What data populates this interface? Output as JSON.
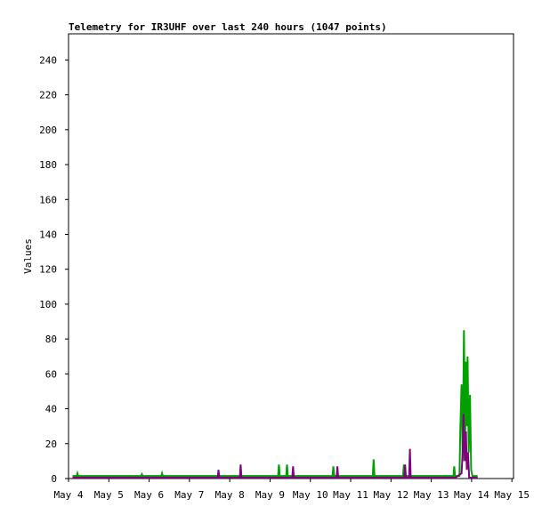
{
  "chart_data": {
    "type": "line",
    "title": "Telemetry for IR3UHF over last 240 hours (1047 points)",
    "y_label": "Values",
    "xlim": [
      0,
      11.04
    ],
    "ylim": [
      0,
      255
    ],
    "xticks": [
      {
        "value": 0,
        "label": "May 4"
      },
      {
        "value": 1,
        "label": "May 5"
      },
      {
        "value": 2,
        "label": "May 6"
      },
      {
        "value": 3,
        "label": "May 7"
      },
      {
        "value": 4,
        "label": "May 8"
      },
      {
        "value": 5,
        "label": "May 9"
      },
      {
        "value": 6,
        "label": "May 10"
      },
      {
        "value": 7,
        "label": "May 11"
      },
      {
        "value": 8,
        "label": "May 12"
      },
      {
        "value": 9,
        "label": "May 13"
      },
      {
        "value": 10,
        "label": "May 14"
      },
      {
        "value": 11,
        "label": "May 15"
      }
    ],
    "yticks": [
      0,
      20,
      40,
      60,
      80,
      100,
      120,
      140,
      160,
      180,
      200,
      220,
      240
    ],
    "series": [
      {
        "color": "#00a000",
        "x": [
          0.1,
          0.2,
          0.22,
          0.24,
          1.8,
          1.82,
          1.84,
          2.3,
          2.32,
          2.34,
          5.2,
          5.22,
          5.24,
          5.4,
          5.42,
          5.44,
          6.55,
          6.57,
          6.59,
          7.55,
          7.57,
          7.59,
          8.3,
          8.32,
          8.34,
          9.55,
          9.57,
          9.59,
          9.7,
          9.72,
          9.75,
          9.78,
          9.81,
          9.84,
          9.86,
          9.88,
          9.9,
          9.93,
          9.96,
          9.99,
          10.02,
          10.15
        ],
        "values": [
          1.5,
          1.5,
          3,
          1.5,
          1.5,
          2.5,
          1.5,
          1.5,
          3,
          1.5,
          1.5,
          8,
          1.5,
          1.5,
          8,
          1.5,
          1.5,
          7,
          1.5,
          1.5,
          11,
          1.5,
          1.5,
          8,
          1.5,
          1.5,
          7,
          1.5,
          1.5,
          28,
          54,
          10,
          85,
          20,
          67,
          30,
          70,
          15,
          48,
          5,
          1.5,
          1.5
        ]
      },
      {
        "color": "#800080",
        "x": [
          0.1,
          3.7,
          3.72,
          3.74,
          4.25,
          4.27,
          4.29,
          5.55,
          5.57,
          5.59,
          6.65,
          6.67,
          6.69,
          8.33,
          8.35,
          8.37,
          8.45,
          8.47,
          8.49,
          9.6,
          9.75,
          9.78,
          9.8,
          9.83,
          9.86,
          9.88,
          9.91,
          9.94,
          10.15
        ],
        "values": [
          0.5,
          0.5,
          5,
          0.5,
          0.5,
          8,
          0.5,
          0.5,
          7,
          0.5,
          0.5,
          7,
          0.5,
          0.5,
          8,
          0.5,
          0.5,
          17,
          0.5,
          0.5,
          3,
          15,
          37,
          10,
          27,
          5,
          15,
          0.5,
          0.5
        ]
      }
    ]
  }
}
